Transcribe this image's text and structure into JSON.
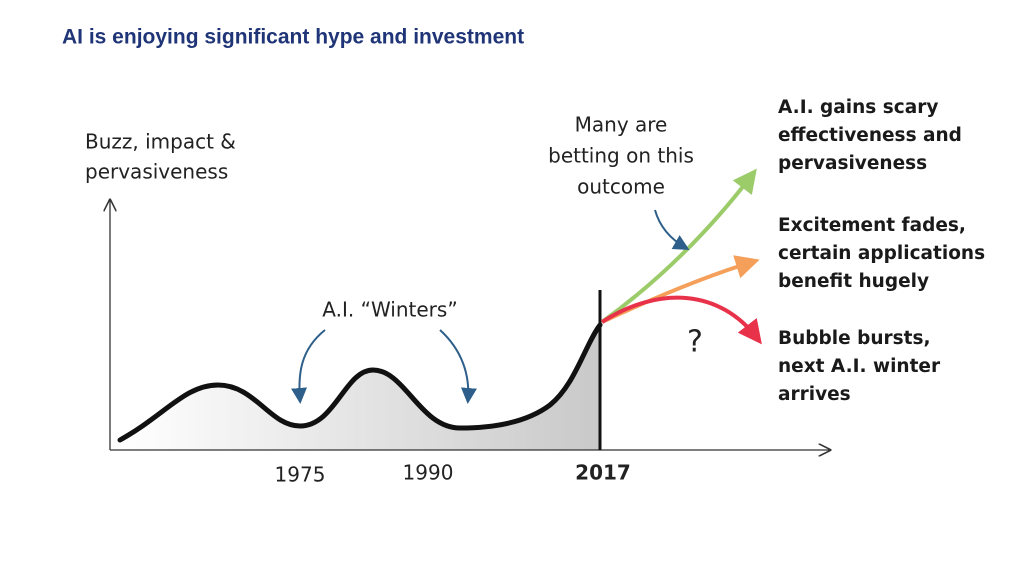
{
  "title": "AI is enjoying significant hype and investment",
  "y_axis_label": [
    "Buzz, impact &",
    "pervasiveness"
  ],
  "bet_note": [
    "Many are",
    "betting on this",
    "outcome"
  ],
  "winters_label": "A.I. “Winters”",
  "question": "?",
  "years": [
    "1975",
    "1990",
    "2017"
  ],
  "outcomes": [
    {
      "lines": [
        "A.I. gains scary",
        "effectiveness and",
        "pervasiveness"
      ]
    },
    {
      "lines": [
        "Excitement fades,",
        "certain applications",
        "benefit hugely"
      ]
    },
    {
      "lines": [
        "Bubble bursts,",
        "next A.I. winter",
        "arrives"
      ]
    }
  ]
}
